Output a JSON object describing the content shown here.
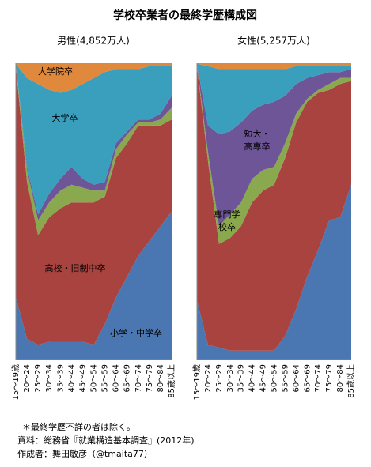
{
  "title": "学校卒業者の最終学歴構成図",
  "footnotes": [
    "＊最終学歴不詳の者は除く。",
    "資料：総務省『就業構造基本調査』(2012年)",
    "作成者：舞田敏彦（@tmaita77）"
  ],
  "chart_data": [
    {
      "type": "area",
      "subtitle": "男性(4,852万人)",
      "categories": [
        "15～19歳",
        "20～24",
        "25～29",
        "30～34",
        "35～39",
        "40～44",
        "45～49",
        "50～54",
        "55～59",
        "60～64",
        "65～69",
        "70～74",
        "75～79",
        "80～84",
        "85歳以上"
      ],
      "ylim": [
        0,
        100
      ],
      "series": [
        {
          "color": "#4a77b2",
          "values": [
            21,
            7,
            5,
            6,
            6,
            6,
            6,
            5,
            12,
            21,
            28,
            35,
            40,
            45,
            50
          ]
        },
        {
          "color": "#a9433f",
          "values": [
            78,
            53,
            37,
            42,
            45,
            47,
            47,
            48,
            43,
            47,
            45,
            44,
            39,
            34,
            31
          ]
        },
        {
          "color": "#8aa84e",
          "values": [
            0.3,
            4,
            5,
            5,
            6,
            6,
            5,
            4,
            2,
            3,
            3,
            1,
            1,
            2,
            4
          ]
        },
        {
          "color": "#6e5597",
          "values": [
            0.2,
            1,
            2,
            3,
            4,
            6,
            3,
            2,
            3,
            2,
            1,
            1,
            1,
            2,
            4
          ]
        },
        {
          "color": "#3a9fbd",
          "values": [
            0.3,
            30,
            44,
            35,
            29,
            26,
            32,
            36,
            37,
            25,
            21,
            17,
            18,
            16,
            10
          ]
        },
        {
          "color": "#e0883b",
          "values": [
            0.2,
            5,
            7,
            9,
            10,
            9,
            7,
            5,
            3,
            2,
            2,
            2,
            1,
            1,
            1
          ]
        }
      ],
      "annotations": [
        {
          "lines": [
            "大学院卒"
          ]
        },
        {
          "lines": [
            "大学卒"
          ]
        },
        {
          "lines": [
            "高校・旧制中卒"
          ]
        },
        {
          "lines": [
            "小学・中学卒"
          ]
        }
      ]
    },
    {
      "type": "area",
      "subtitle": "女性(5,257万人)",
      "categories": [
        "15～19歳",
        "20～24",
        "25～29",
        "30～34",
        "35～39",
        "40～44",
        "45～49",
        "50～54",
        "55～59",
        "60～64",
        "65～69",
        "70～74",
        "75～79",
        "80～84",
        "85歳以上"
      ],
      "ylim": [
        0,
        100
      ],
      "series": [
        {
          "color": "#4a77b2",
          "values": [
            20,
            5,
            4,
            3,
            3,
            3,
            3,
            3,
            8,
            17,
            28,
            37,
            47,
            48,
            59
          ]
        },
        {
          "color": "#a9433f",
          "values": [
            79,
            62,
            35,
            38,
            42,
            50,
            54,
            56,
            60,
            63,
            59,
            53,
            44,
            45,
            35
          ]
        },
        {
          "color": "#8aa84e",
          "values": [
            0.3,
            3,
            6,
            8,
            8,
            8,
            7,
            6,
            5,
            3,
            1,
            1,
            2,
            2,
            1
          ]
        },
        {
          "color": "#6e5597",
          "values": [
            0.2,
            9,
            31,
            28,
            27,
            23,
            22,
            22,
            16,
            10,
            7,
            5,
            4,
            2,
            3
          ]
        },
        {
          "color": "#3a9fbd",
          "values": [
            0.3,
            20,
            22,
            21,
            18,
            14,
            12,
            11,
            9,
            6,
            4,
            3,
            2,
            2,
            1
          ]
        },
        {
          "color": "#e0883b",
          "values": [
            0.2,
            1,
            2,
            2,
            2,
            2,
            2,
            2,
            2,
            1,
            1,
            1,
            1,
            1,
            1
          ]
        }
      ],
      "annotations": [
        {
          "lines": [
            "短大・",
            "高専卒"
          ]
        },
        {
          "lines": [
            "専門学",
            "校卒"
          ]
        }
      ]
    }
  ]
}
